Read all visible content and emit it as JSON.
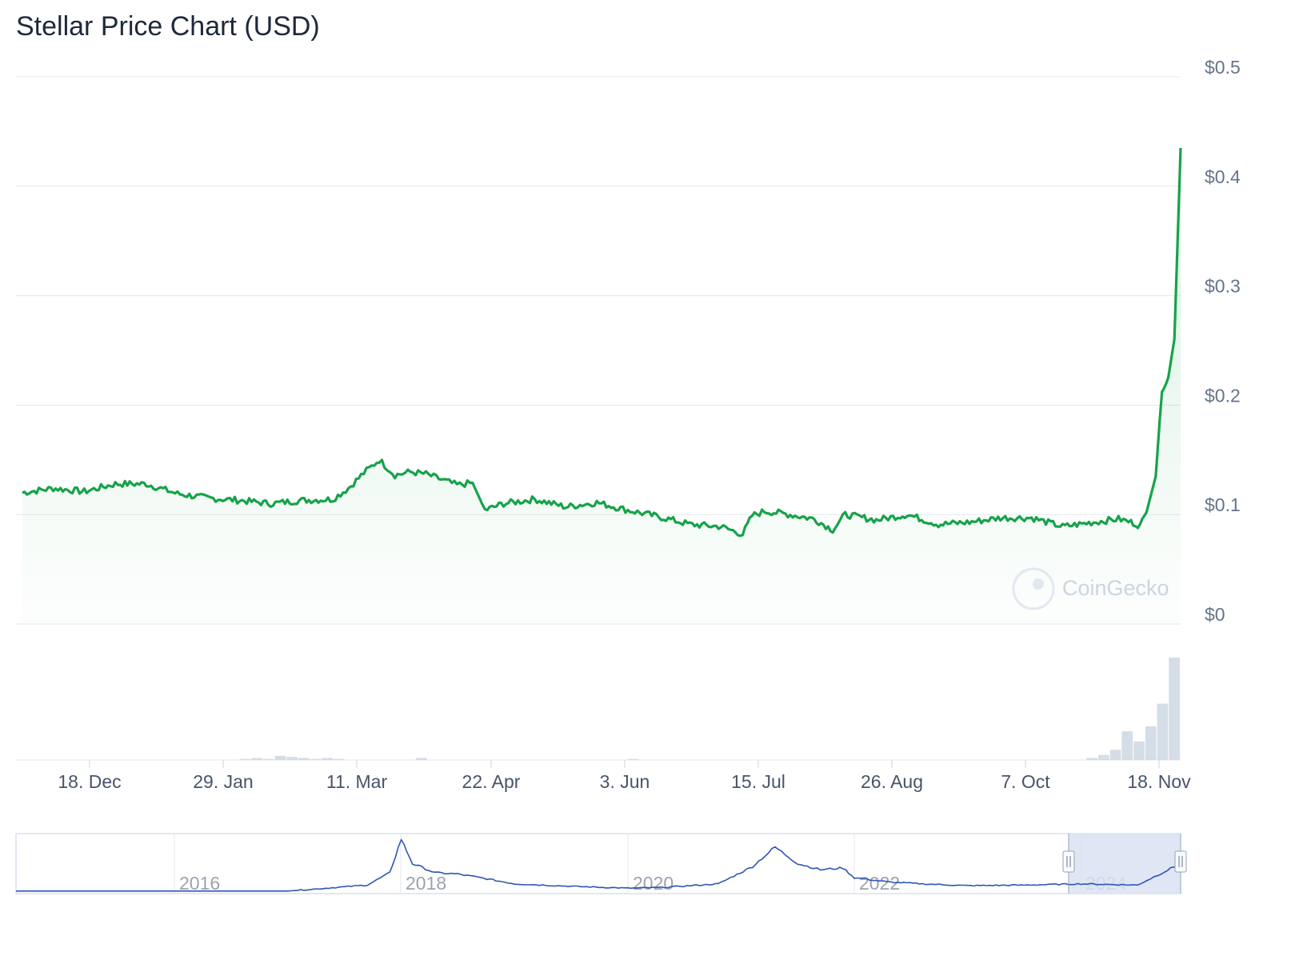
{
  "header": {
    "title": "Stellar Price Chart (USD)"
  },
  "watermark": {
    "text": "CoinGecko"
  },
  "colors": {
    "line": "#16a34a",
    "nav_line": "#2f55b5",
    "grid": "#e5e7eb",
    "nav_mask": "#dbe2f2"
  },
  "chart_data": {
    "type": "line",
    "title": "Stellar Price Chart (USD)",
    "series": [
      {
        "name": "",
        "x": [
          "2023-11-17",
          "2023-11-27",
          "2023-12-07",
          "2023-12-17",
          "2023-12-27",
          "2024-01-06",
          "2024-01-16",
          "2024-01-26",
          "2024-02-05",
          "2024-02-15",
          "2024-02-25",
          "2024-03-01",
          "2024-03-06",
          "2024-03-11",
          "2024-03-16",
          "2024-03-21",
          "2024-03-26",
          "2024-03-31",
          "2024-04-05",
          "2024-04-10",
          "2024-04-14",
          "2024-04-20",
          "2024-04-30",
          "2024-05-10",
          "2024-05-20",
          "2024-05-30",
          "2024-06-09",
          "2024-06-19",
          "2024-06-29",
          "2024-07-06",
          "2024-07-09",
          "2024-07-13",
          "2024-07-19",
          "2024-07-29",
          "2024-08-04",
          "2024-08-08",
          "2024-08-18",
          "2024-08-28",
          "2024-09-07",
          "2024-09-17",
          "2024-09-27",
          "2024-10-07",
          "2024-10-17",
          "2024-10-27",
          "2024-11-04",
          "2024-11-08",
          "2024-11-11",
          "2024-11-13",
          "2024-11-16",
          "2024-11-18",
          "2024-11-20",
          "2024-11-22",
          "2024-11-24"
        ],
        "y": [
          0.12,
          0.124,
          0.121,
          0.128,
          0.128,
          0.119,
          0.115,
          0.113,
          0.11,
          0.113,
          0.114,
          0.124,
          0.138,
          0.15,
          0.136,
          0.139,
          0.137,
          0.132,
          0.127,
          0.129,
          0.104,
          0.11,
          0.114,
          0.107,
          0.111,
          0.104,
          0.098,
          0.091,
          0.089,
          0.082,
          0.099,
          0.103,
          0.101,
          0.096,
          0.086,
          0.1,
          0.095,
          0.1,
          0.091,
          0.093,
          0.097,
          0.097,
          0.089,
          0.093,
          0.096,
          0.093,
          0.09,
          0.102,
          0.135,
          0.215,
          0.225,
          0.26,
          0.435
        ]
      }
    ],
    "volume_samples": [
      0,
      0,
      0,
      0,
      0,
      0,
      0,
      0,
      0,
      0,
      0,
      0,
      0,
      0,
      0,
      0,
      0,
      0,
      0,
      0.01,
      0.02,
      0.01,
      0.04,
      0.03,
      0.02,
      0.01,
      0.02,
      0.01,
      0,
      0,
      0,
      0,
      0,
      0,
      0.02,
      0,
      0,
      0,
      0,
      0,
      0,
      0,
      0,
      0,
      0,
      0,
      0,
      0,
      0,
      0,
      0,
      0,
      0.01,
      0,
      0,
      0,
      0,
      0,
      0,
      0,
      0,
      0,
      0,
      0,
      0,
      0,
      0,
      0,
      0,
      0,
      0,
      0,
      0,
      0,
      0,
      0,
      0,
      0,
      0,
      0,
      0,
      0,
      0,
      0,
      0,
      0,
      0,
      0,
      0,
      0,
      0,
      0.02,
      0.05,
      0.1,
      0.28,
      0.18,
      0.33,
      0.55,
      1.0
    ],
    "ylim": [
      0,
      0.5
    ],
    "y_ticks": [
      "$0",
      "$0.1",
      "$0.2",
      "$0.3",
      "$0.4",
      "$0.5"
    ],
    "x_ticks": [
      "18. Dec",
      "29. Jan",
      "11. Mar",
      "22. Apr",
      "3. Jun",
      "15. Jul",
      "26. Aug",
      "7. Oct",
      "18. Nov"
    ],
    "grid": true,
    "navigator": {
      "year_labels": [
        "2016",
        "2018",
        "2020",
        "2022",
        "2024"
      ],
      "x": [
        2014.6,
        2017.0,
        2017.7,
        2017.9,
        2018.0,
        2018.1,
        2018.3,
        2018.5,
        2018.7,
        2019.0,
        2019.5,
        2020.0,
        2020.3,
        2020.8,
        2021.1,
        2021.3,
        2021.5,
        2021.7,
        2021.9,
        2022.0,
        2022.3,
        2022.6,
        2023.0,
        2023.5,
        2024.0,
        2024.5,
        2024.88
      ],
      "y": [
        0.002,
        0.002,
        0.1,
        0.3,
        0.85,
        0.45,
        0.3,
        0.28,
        0.22,
        0.12,
        0.08,
        0.05,
        0.06,
        0.12,
        0.4,
        0.72,
        0.45,
        0.35,
        0.38,
        0.22,
        0.15,
        0.12,
        0.09,
        0.1,
        0.12,
        0.1,
        0.45
      ],
      "ylim": [
        0,
        0.9
      ]
    }
  }
}
